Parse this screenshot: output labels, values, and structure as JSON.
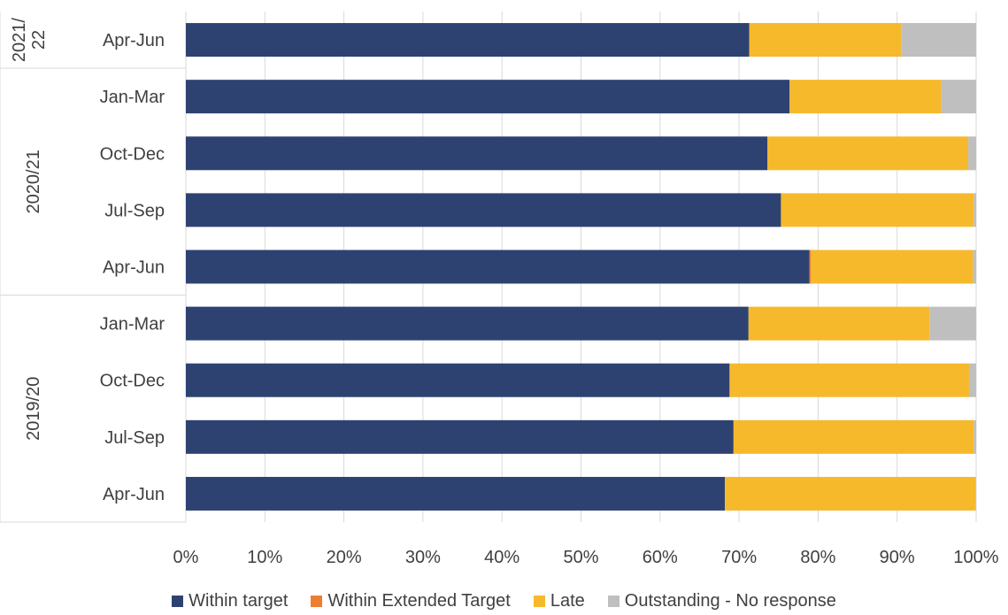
{
  "chart_data": {
    "type": "bar",
    "orientation": "horizontal",
    "stacked": "percent",
    "title": "",
    "xlabel": "",
    "ylabel": "",
    "xlim": [
      0,
      100
    ],
    "x_ticks": [
      "0%",
      "10%",
      "20%",
      "30%",
      "40%",
      "50%",
      "60%",
      "70%",
      "80%",
      "90%",
      "100%"
    ],
    "grid": true,
    "legend_position": "bottom",
    "groups": [
      {
        "label": "2021/\n22",
        "categories": [
          "Apr-Jun"
        ]
      },
      {
        "label": "2020/21",
        "categories": [
          "Jan-Mar",
          "Oct-Dec",
          "Jul-Sep",
          "Apr-Jun"
        ]
      },
      {
        "label": "2019/20",
        "categories": [
          "Jan-Mar",
          "Oct-Dec",
          "Jul-Sep",
          "Apr-Jun"
        ]
      }
    ],
    "categories": [
      "Apr-Jun",
      "Jan-Mar",
      "Oct-Dec",
      "Jul-Sep",
      "Apr-Jun",
      "Jan-Mar",
      "Oct-Dec",
      "Jul-Sep",
      "Apr-Jun"
    ],
    "series": [
      {
        "name": "Within target",
        "color": "#2E4272",
        "values": [
          71.3,
          76.4,
          73.6,
          75.3,
          78.9,
          71.2,
          68.8,
          69.3,
          68.2
        ]
      },
      {
        "name": "Within Extended Target",
        "color": "#ED7D31",
        "values": [
          0,
          0,
          0,
          0,
          0.2,
          0,
          0,
          0,
          0
        ]
      },
      {
        "name": "Late",
        "color": "#F6B92B",
        "values": [
          19.2,
          19.2,
          25.4,
          24.4,
          20.5,
          22.9,
          30.3,
          30.4,
          31.7
        ]
      },
      {
        "name": "Outstanding - No response",
        "color": "#BFBFBF",
        "values": [
          9.5,
          4.4,
          1.0,
          0.3,
          0.4,
          5.9,
          0.9,
          0.3,
          0.1
        ]
      }
    ]
  }
}
